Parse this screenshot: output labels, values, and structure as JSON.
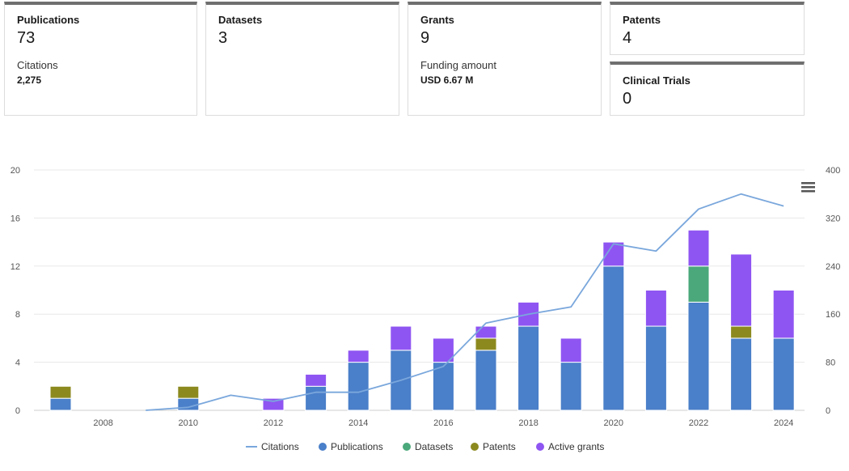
{
  "cards": {
    "publications": {
      "label": "Publications",
      "value": "73",
      "sublabel": "Citations",
      "subvalue": "2,275"
    },
    "datasets": {
      "label": "Datasets",
      "value": "3"
    },
    "grants": {
      "label": "Grants",
      "value": "9",
      "sublabel": "Funding amount",
      "subvalue": "USD 6.67 M"
    },
    "patents": {
      "label": "Patents",
      "value": "4"
    },
    "clinical_trials": {
      "label": "Clinical Trials",
      "value": "0"
    }
  },
  "chart_menu_icon": "hamburger-menu-icon",
  "chart_data": {
    "type": "bar",
    "stacked": true,
    "categories": [
      "2007",
      "2008",
      "2009",
      "2010",
      "2011",
      "2012",
      "2013",
      "2014",
      "2015",
      "2016",
      "2017",
      "2018",
      "2019",
      "2020",
      "2021",
      "2022",
      "2023",
      "2024"
    ],
    "x_tick_labels": [
      "2008",
      "2010",
      "2012",
      "2014",
      "2016",
      "2018",
      "2020",
      "2022",
      "2024"
    ],
    "series": [
      {
        "name": "Publications",
        "color": "#4a7fc9",
        "values": [
          1,
          0,
          0,
          1,
          0,
          0,
          2,
          4,
          5,
          4,
          5,
          7,
          4,
          12,
          7,
          9,
          6,
          6
        ]
      },
      {
        "name": "Datasets",
        "color": "#4aa87a",
        "values": [
          0,
          0,
          0,
          0,
          0,
          0,
          0,
          0,
          0,
          0,
          0,
          0,
          0,
          0,
          0,
          3,
          0,
          0
        ]
      },
      {
        "name": "Patents",
        "color": "#8c8a1f",
        "values": [
          1,
          0,
          0,
          1,
          0,
          0,
          0,
          0,
          0,
          0,
          1,
          0,
          0,
          0,
          0,
          0,
          1,
          0
        ]
      },
      {
        "name": "Active grants",
        "color": "#8f55f2",
        "values": [
          0,
          0,
          0,
          0,
          0,
          1,
          1,
          1,
          2,
          2,
          1,
          2,
          2,
          2,
          3,
          3,
          6,
          4
        ]
      }
    ],
    "line_series": {
      "name": "Citations",
      "color": "#7aa7dc",
      "axis": "right",
      "x": [
        "2009",
        "2010",
        "2011",
        "2012",
        "2013",
        "2014",
        "2015",
        "2016",
        "2017",
        "2018",
        "2019",
        "2020",
        "2021",
        "2022",
        "2023",
        "2024"
      ],
      "values": [
        0,
        5,
        25,
        15,
        30,
        30,
        50,
        73,
        145,
        160,
        172,
        277,
        265,
        335,
        360,
        340
      ]
    },
    "y_left": {
      "ticks": [
        "0",
        "4",
        "8",
        "12",
        "16",
        "20"
      ],
      "ylim": [
        0,
        20
      ]
    },
    "y_right": {
      "ticks": [
        "0",
        "80",
        "160",
        "240",
        "320",
        "400"
      ],
      "ylim": [
        0,
        400
      ]
    },
    "legend": [
      "Citations",
      "Publications",
      "Datasets",
      "Patents",
      "Active grants"
    ],
    "legend_position": "bottom-center",
    "grid": true
  }
}
